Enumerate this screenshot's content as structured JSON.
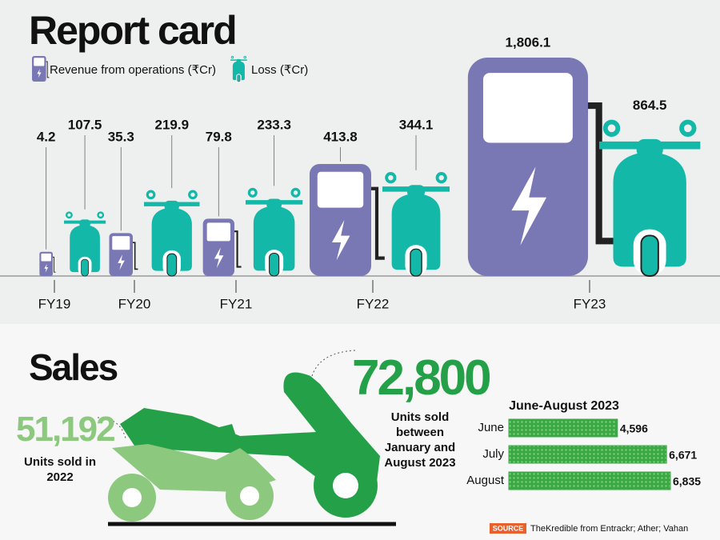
{
  "chart_data": [
    {
      "type": "bar",
      "title": "Report card",
      "categories": [
        "FY19",
        "FY20",
        "FY21",
        "FY22",
        "FY23"
      ],
      "series": [
        {
          "name": "Revenue from operations (₹Cr)",
          "color": "#7a77b5",
          "values": [
            4.2,
            35.3,
            79.8,
            413.8,
            1806.1
          ],
          "value_labels": [
            "4.2",
            "35.3",
            "79.8",
            "413.8",
            "1,806.1"
          ]
        },
        {
          "name": "Loss (₹Cr)",
          "color": "#13b8a8",
          "values": [
            107.5,
            219.9,
            233.3,
            344.1,
            864.5
          ]
        }
      ]
    },
    {
      "type": "hbar",
      "title": "June-August 2023",
      "categories": [
        "June",
        "July",
        "August"
      ],
      "values": [
        4596,
        6671,
        6835
      ],
      "value_labels": [
        "4,596",
        "6,671",
        "6,835"
      ],
      "color": "#3aa845"
    }
  ],
  "sales": {
    "title": "Sales",
    "stat_2022": {
      "value": "51,192",
      "caption": "Units sold in 2022"
    },
    "stat_2023": {
      "value": "72,800",
      "caption": "Units sold between January and August 2023"
    }
  },
  "source": {
    "badge": "SOURCE",
    "text": "TheKredible from Entrackr; Ather; Vahan"
  }
}
